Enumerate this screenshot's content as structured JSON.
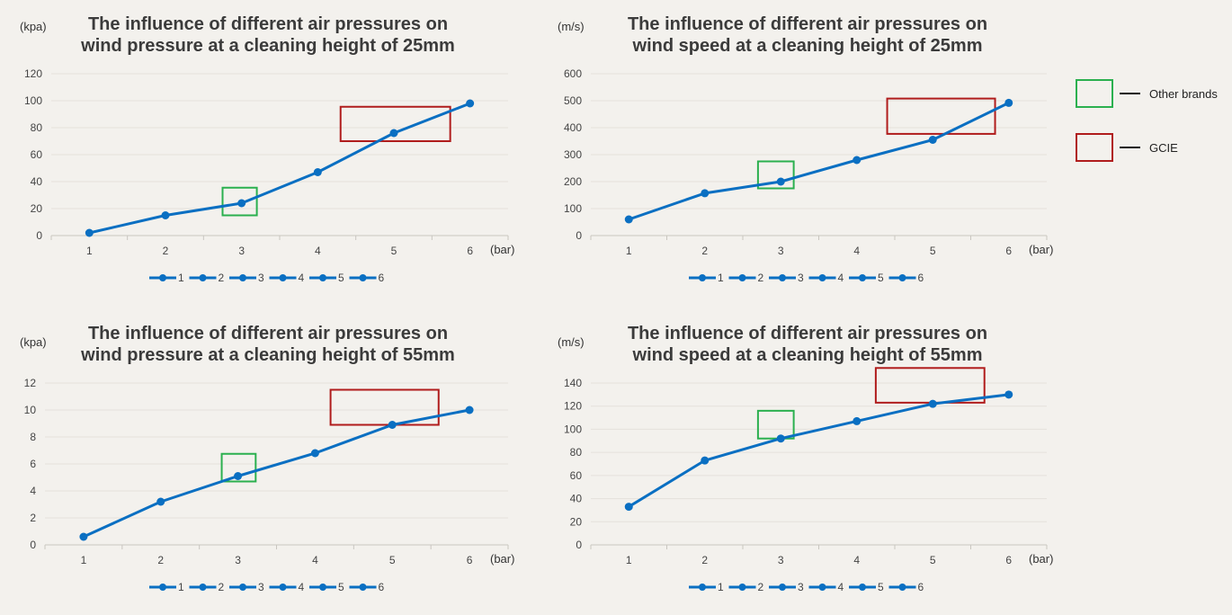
{
  "colors": {
    "line": "#0a6fc2",
    "other_brands": "#2bb04f",
    "gcie": "#b01c1c"
  },
  "key": [
    {
      "label": "Other brands",
      "color": "#2bb04f"
    },
    {
      "label": "GCIE",
      "color": "#b01c1c"
    }
  ],
  "chart_data": [
    {
      "type": "line",
      "title": [
        "The influence of different air pressures on",
        "wind pressure at a cleaning height of 25mm"
      ],
      "ylabel": "(kpa)",
      "xlabel": "(bar)",
      "x": [
        1,
        2,
        3,
        4,
        5,
        6
      ],
      "values": [
        2,
        15,
        24,
        47,
        76,
        98
      ],
      "ylim": [
        0,
        120
      ],
      "yticks": [
        0,
        20,
        40,
        60,
        80,
        100,
        120
      ],
      "legend": [
        "1",
        "2",
        "3",
        "4",
        "5",
        "6"
      ],
      "legend_position": "bottom",
      "grid": true,
      "highlights": [
        {
          "brand": "Other brands",
          "x": [
            2.75,
            3.2
          ],
          "y": [
            15,
            35.5
          ]
        },
        {
          "brand": "GCIE",
          "x": [
            4.3,
            5.74
          ],
          "y": [
            70,
            95.5
          ]
        }
      ]
    },
    {
      "type": "line",
      "title": [
        "The influence of different air pressures on",
        "wind speed at a cleaning height of 25mm"
      ],
      "ylabel": "(m/s)",
      "xlabel": "(bar)",
      "x": [
        1,
        2,
        3,
        4,
        5,
        6
      ],
      "values": [
        60,
        157,
        200,
        280,
        355,
        492
      ],
      "ylim": [
        0,
        600
      ],
      "yticks": [
        0,
        100,
        200,
        300,
        400,
        500,
        600
      ],
      "legend": [
        "1",
        "2",
        "3",
        "4",
        "5",
        "6"
      ],
      "legend_position": "bottom",
      "grid": true,
      "highlights": [
        {
          "brand": "Other brands",
          "x": [
            2.7,
            3.17
          ],
          "y": [
            175,
            275
          ]
        },
        {
          "brand": "GCIE",
          "x": [
            4.4,
            5.82
          ],
          "y": [
            377,
            508
          ]
        }
      ]
    },
    {
      "type": "line",
      "title": [
        "The influence of different air pressures on",
        "wind pressure at a cleaning height of 55mm"
      ],
      "ylabel": "(kpa)",
      "xlabel": "(bar)",
      "x": [
        1,
        2,
        3,
        4,
        5,
        6
      ],
      "values": [
        0.6,
        3.2,
        5.1,
        6.8,
        8.9,
        10
      ],
      "ylim": [
        0,
        12
      ],
      "yticks": [
        0,
        2,
        4,
        6,
        8,
        10,
        12
      ],
      "legend": [
        "1",
        "2",
        "3",
        "4",
        "5",
        "6"
      ],
      "legend_position": "bottom",
      "grid": true,
      "highlights": [
        {
          "brand": "Other brands",
          "x": [
            2.79,
            3.23
          ],
          "y": [
            4.7,
            6.75
          ]
        },
        {
          "brand": "GCIE",
          "x": [
            4.2,
            5.6
          ],
          "y": [
            8.9,
            11.5
          ]
        }
      ]
    },
    {
      "type": "line",
      "title": [
        "The influence of different air pressures on",
        "wind speed at a cleaning height of 55mm"
      ],
      "ylabel": "(m/s)",
      "xlabel": "(bar)",
      "x": [
        1,
        2,
        3,
        4,
        5,
        6
      ],
      "values": [
        33,
        73,
        92,
        107,
        122,
        130
      ],
      "ylim": [
        0,
        140
      ],
      "yticks": [
        0,
        20,
        40,
        60,
        80,
        100,
        120,
        140
      ],
      "legend": [
        "1",
        "2",
        "3",
        "4",
        "5",
        "6"
      ],
      "legend_position": "bottom",
      "grid": true,
      "highlights": [
        {
          "brand": "Other brands",
          "x": [
            2.7,
            3.17
          ],
          "y": [
            92,
            116
          ]
        },
        {
          "brand": "GCIE",
          "x": [
            4.25,
            5.68
          ],
          "y": [
            123,
            153
          ]
        }
      ]
    }
  ]
}
